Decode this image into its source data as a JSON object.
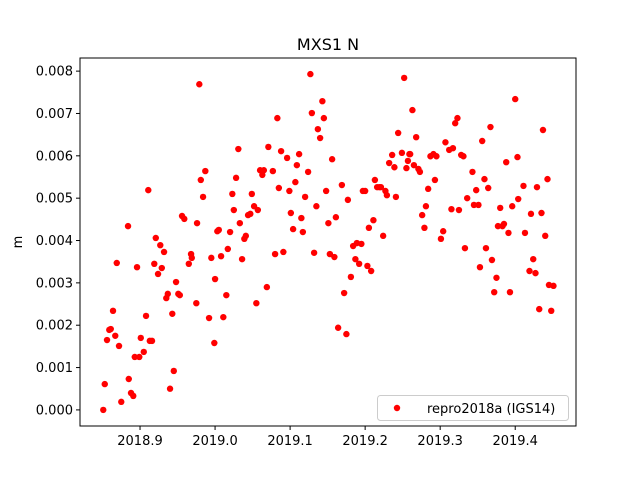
{
  "chart_data": {
    "type": "scatter",
    "title": "MXS1 N",
    "xlabel": "",
    "ylabel": "m",
    "xlim": [
      2018.82,
      2019.481
    ],
    "ylim": [
      -0.00038,
      0.00831
    ],
    "grid": false,
    "legend_placement": "lower-right",
    "x_ticks": [
      {
        "value": 2018.9,
        "label": "2018.9"
      },
      {
        "value": 2019.0,
        "label": "2019.0"
      },
      {
        "value": 2019.1,
        "label": "2019.1"
      },
      {
        "value": 2019.2,
        "label": "2019.2"
      },
      {
        "value": 2019.3,
        "label": "2019.3"
      },
      {
        "value": 2019.4,
        "label": "2019.4"
      }
    ],
    "y_ticks": [
      {
        "value": 0.0,
        "label": "0.000"
      },
      {
        "value": 0.001,
        "label": "0.001"
      },
      {
        "value": 0.002,
        "label": "0.002"
      },
      {
        "value": 0.003,
        "label": "0.003"
      },
      {
        "value": 0.004,
        "label": "0.004"
      },
      {
        "value": 0.005,
        "label": "0.005"
      },
      {
        "value": 0.006,
        "label": "0.006"
      },
      {
        "value": 0.007,
        "label": "0.007"
      },
      {
        "value": 0.008,
        "label": "0.008"
      }
    ],
    "series": [
      {
        "name": "repro2018a (IGS14)",
        "color": "#ff0000",
        "marker": "circle",
        "points": [
          [
            2018.979,
            0.00769
          ],
          [
            2019.031,
            0.00616
          ],
          [
            2018.987,
            0.00564
          ],
          [
            2018.981,
            0.00543
          ],
          [
            2019.028,
            0.00548
          ],
          [
            2018.984,
            0.00503
          ],
          [
            2019.023,
            0.0051
          ],
          [
            2018.911,
            0.00519
          ],
          [
            2019.025,
            0.00472
          ],
          [
            2018.956,
            0.00458
          ],
          [
            2018.959,
            0.00451
          ],
          [
            2018.976,
            0.00441
          ],
          [
            2019.033,
            0.00441
          ],
          [
            2018.884,
            0.00434
          ],
          [
            2019.003,
            0.00422
          ],
          [
            2019.005,
            0.00425
          ],
          [
            2019.02,
            0.0042
          ],
          [
            2019.041,
            0.00411
          ],
          [
            2019.039,
            0.00404
          ],
          [
            2018.921,
            0.00406
          ],
          [
            2018.927,
            0.00389
          ],
          [
            2019.017,
            0.0038
          ],
          [
            2018.932,
            0.00373
          ],
          [
            2018.968,
            0.00368
          ],
          [
            2018.969,
            0.00359
          ],
          [
            2018.995,
            0.00359
          ],
          [
            2019.008,
            0.00363
          ],
          [
            2019.036,
            0.00356
          ],
          [
            2018.869,
            0.00347
          ],
          [
            2018.896,
            0.00337
          ],
          [
            2018.919,
            0.00345
          ],
          [
            2018.929,
            0.00335
          ],
          [
            2018.965,
            0.00345
          ],
          [
            2018.924,
            0.00321
          ],
          [
            2019.0,
            0.00309
          ],
          [
            2018.948,
            0.00302
          ],
          [
            2018.937,
            0.00274
          ],
          [
            2018.935,
            0.00264
          ],
          [
            2018.951,
            0.00274
          ],
          [
            2018.953,
            0.00271
          ],
          [
            2019.015,
            0.00271
          ],
          [
            2018.975,
            0.00252
          ],
          [
            2018.864,
            0.00234
          ],
          [
            2018.908,
            0.00222
          ],
          [
            2018.943,
            0.00227
          ],
          [
            2018.992,
            0.00217
          ],
          [
            2019.011,
            0.00219
          ],
          [
            2018.859,
            0.00189
          ],
          [
            2018.861,
            0.00191
          ],
          [
            2018.867,
            0.00175
          ],
          [
            2018.856,
            0.00165
          ],
          [
            2018.901,
            0.0017
          ],
          [
            2018.913,
            0.00163
          ],
          [
            2018.916,
            0.00163
          ],
          [
            2018.872,
            0.00151
          ],
          [
            2018.999,
            0.00158
          ],
          [
            2018.893,
            0.00125
          ],
          [
            2018.899,
            0.00125
          ],
          [
            2018.905,
            0.00137
          ],
          [
            2018.945,
            0.00092
          ],
          [
            2018.853,
            0.00061
          ],
          [
            2018.885,
            0.00073
          ],
          [
            2018.94,
            0.0005
          ],
          [
            2018.888,
            0.0004
          ],
          [
            2018.891,
            0.00033
          ],
          [
            2018.875,
            0.00019
          ],
          [
            2018.851,
            0.0
          ],
          [
            2019.127,
            0.00793
          ],
          [
            2019.252,
            0.00784
          ],
          [
            2019.143,
            0.00729
          ],
          [
            2019.129,
            0.00701
          ],
          [
            2019.083,
            0.00689
          ],
          [
            2019.145,
            0.00689
          ],
          [
            2019.137,
            0.00663
          ],
          [
            2019.14,
            0.00642
          ],
          [
            2019.244,
            0.00654
          ],
          [
            2019.071,
            0.00621
          ],
          [
            2019.088,
            0.00611
          ],
          [
            2019.096,
            0.00595
          ],
          [
            2019.112,
            0.00604
          ],
          [
            2019.156,
            0.00592
          ],
          [
            2019.236,
            0.00602
          ],
          [
            2019.232,
            0.00583
          ],
          [
            2019.239,
            0.00573
          ],
          [
            2019.255,
            0.00571
          ],
          [
            2019.249,
            0.00607
          ],
          [
            2019.259,
            0.00604
          ],
          [
            2019.257,
            0.00588
          ],
          [
            2019.109,
            0.00578
          ],
          [
            2019.06,
            0.00566
          ],
          [
            2019.065,
            0.00566
          ],
          [
            2019.063,
            0.00555
          ],
          [
            2019.077,
            0.00564
          ],
          [
            2019.124,
            0.00562
          ],
          [
            2019.107,
            0.00538
          ],
          [
            2019.085,
            0.00524
          ],
          [
            2019.099,
            0.00517
          ],
          [
            2019.148,
            0.00517
          ],
          [
            2019.169,
            0.00531
          ],
          [
            2019.213,
            0.00543
          ],
          [
            2019.216,
            0.00526
          ],
          [
            2019.219,
            0.00526
          ],
          [
            2019.221,
            0.00526
          ],
          [
            2019.227,
            0.00517
          ],
          [
            2019.229,
            0.00507
          ],
          [
            2019.197,
            0.00517
          ],
          [
            2019.2,
            0.00517
          ],
          [
            2019.241,
            0.00503
          ],
          [
            2019.049,
            0.0051
          ],
          [
            2019.12,
            0.00503
          ],
          [
            2019.177,
            0.00496
          ],
          [
            2019.052,
            0.00481
          ],
          [
            2019.057,
            0.00472
          ],
          [
            2019.135,
            0.00481
          ],
          [
            2019.044,
            0.0046
          ],
          [
            2019.047,
            0.00463
          ],
          [
            2019.101,
            0.00465
          ],
          [
            2019.115,
            0.00453
          ],
          [
            2019.161,
            0.00455
          ],
          [
            2019.151,
            0.00441
          ],
          [
            2019.211,
            0.00448
          ],
          [
            2019.205,
            0.0043
          ],
          [
            2019.104,
            0.00427
          ],
          [
            2019.117,
            0.0042
          ],
          [
            2019.224,
            0.00411
          ],
          [
            2019.184,
            0.00387
          ],
          [
            2019.189,
            0.00394
          ],
          [
            2019.195,
            0.00392
          ],
          [
            2019.08,
            0.00368
          ],
          [
            2019.091,
            0.00373
          ],
          [
            2019.132,
            0.00371
          ],
          [
            2019.153,
            0.00368
          ],
          [
            2019.159,
            0.00361
          ],
          [
            2019.187,
            0.00356
          ],
          [
            2019.192,
            0.00345
          ],
          [
            2019.203,
            0.0034
          ],
          [
            2019.208,
            0.00328
          ],
          [
            2019.181,
            0.00314
          ],
          [
            2019.069,
            0.0029
          ],
          [
            2019.172,
            0.00276
          ],
          [
            2019.055,
            0.00252
          ],
          [
            2019.164,
            0.00194
          ],
          [
            2019.175,
            0.00179
          ],
          [
            2019.4,
            0.00734
          ],
          [
            2019.263,
            0.00708
          ],
          [
            2019.323,
            0.00689
          ],
          [
            2019.32,
            0.00677
          ],
          [
            2019.437,
            0.00661
          ],
          [
            2019.367,
            0.00668
          ],
          [
            2019.268,
            0.00644
          ],
          [
            2019.307,
            0.00632
          ],
          [
            2019.356,
            0.00635
          ],
          [
            2019.312,
            0.00614
          ],
          [
            2019.317,
            0.00618
          ],
          [
            2019.26,
            0.00604
          ],
          [
            2019.287,
            0.00599
          ],
          [
            2019.291,
            0.00604
          ],
          [
            2019.295,
            0.00599
          ],
          [
            2019.328,
            0.00602
          ],
          [
            2019.331,
            0.00599
          ],
          [
            2019.403,
            0.00597
          ],
          [
            2019.388,
            0.00585
          ],
          [
            2019.265,
            0.00578
          ],
          [
            2019.271,
            0.00569
          ],
          [
            2019.273,
            0.00562
          ],
          [
            2019.343,
            0.00562
          ],
          [
            2019.293,
            0.00543
          ],
          [
            2019.359,
            0.00545
          ],
          [
            2019.443,
            0.00545
          ],
          [
            2019.364,
            0.00524
          ],
          [
            2019.411,
            0.00529
          ],
          [
            2019.429,
            0.00526
          ],
          [
            2019.284,
            0.00522
          ],
          [
            2019.348,
            0.00519
          ],
          [
            2019.336,
            0.005
          ],
          [
            2019.404,
            0.00498
          ],
          [
            2019.345,
            0.00484
          ],
          [
            2019.351,
            0.00484
          ],
          [
            2019.281,
            0.00481
          ],
          [
            2019.38,
            0.00477
          ],
          [
            2019.396,
            0.00481
          ],
          [
            2019.315,
            0.00474
          ],
          [
            2019.325,
            0.00472
          ],
          [
            2019.276,
            0.0046
          ],
          [
            2019.421,
            0.00463
          ],
          [
            2019.435,
            0.00465
          ],
          [
            2019.377,
            0.00434
          ],
          [
            2019.383,
            0.00434
          ],
          [
            2019.385,
            0.00439
          ],
          [
            2019.279,
            0.0043
          ],
          [
            2019.304,
            0.00422
          ],
          [
            2019.301,
            0.00404
          ],
          [
            2019.391,
            0.00418
          ],
          [
            2019.413,
            0.00418
          ],
          [
            2019.44,
            0.00411
          ],
          [
            2019.333,
            0.00382
          ],
          [
            2019.361,
            0.00382
          ],
          [
            2019.369,
            0.00354
          ],
          [
            2019.424,
            0.00356
          ],
          [
            2019.353,
            0.00337
          ],
          [
            2019.419,
            0.00328
          ],
          [
            2019.427,
            0.00323
          ],
          [
            2019.375,
            0.00312
          ],
          [
            2019.445,
            0.00295
          ],
          [
            2019.451,
            0.00293
          ],
          [
            2019.372,
            0.00278
          ],
          [
            2019.393,
            0.00278
          ],
          [
            2019.432,
            0.00238
          ],
          [
            2019.448,
            0.00234
          ]
        ]
      }
    ]
  }
}
